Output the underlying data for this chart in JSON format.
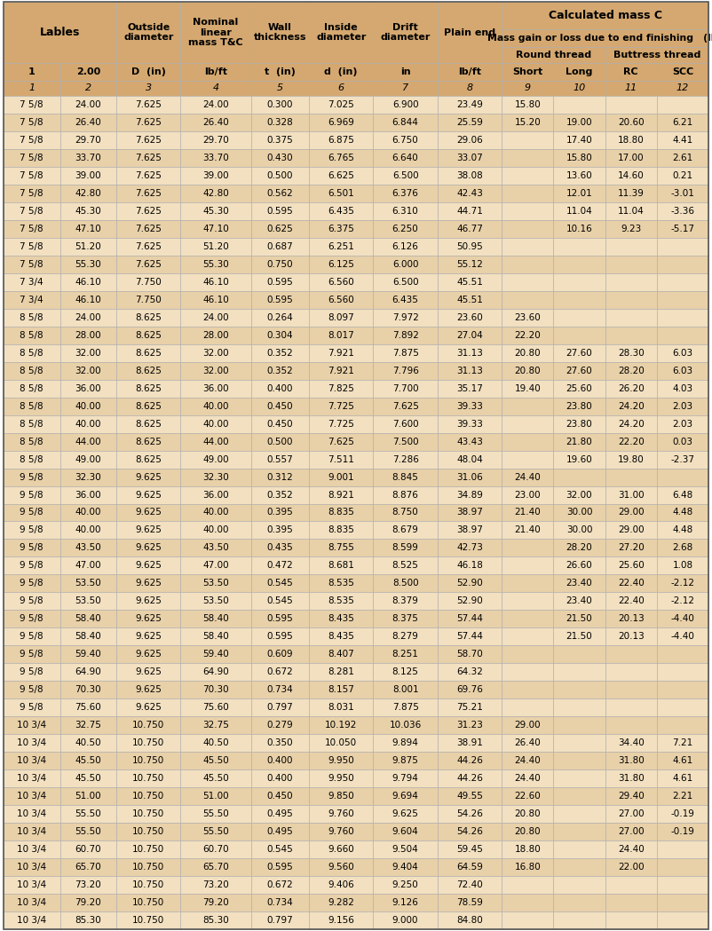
{
  "header_bg": "#d4a870",
  "row_bg_odd": "#f2e0c0",
  "row_bg_even": "#e8d0a8",
  "border_color": "#aaaaaa",
  "row4_texts": [
    "1",
    "2.00",
    "D  (in)",
    "lb/ft",
    "t  (in)",
    "d  (in)",
    "in",
    "lb/ft",
    "Short",
    "Long",
    "RC",
    "SCC"
  ],
  "row5_texts": [
    "1",
    "2",
    "3",
    "4",
    "5",
    "6",
    "7",
    "8",
    "9",
    "10",
    "11",
    "12"
  ],
  "rows": [
    [
      "7 5/8",
      "24.00",
      "7.625",
      "24.00",
      "0.300",
      "7.025",
      "6.900",
      "23.49",
      "15.80",
      "",
      "",
      ""
    ],
    [
      "7 5/8",
      "26.40",
      "7.625",
      "26.40",
      "0.328",
      "6.969",
      "6.844",
      "25.59",
      "15.20",
      "19.00",
      "20.60",
      "6.21"
    ],
    [
      "7 5/8",
      "29.70",
      "7.625",
      "29.70",
      "0.375",
      "6.875",
      "6.750",
      "29.06",
      "",
      "17.40",
      "18.80",
      "4.41"
    ],
    [
      "7 5/8",
      "33.70",
      "7.625",
      "33.70",
      "0.430",
      "6.765",
      "6.640",
      "33.07",
      "",
      "15.80",
      "17.00",
      "2.61"
    ],
    [
      "7 5/8",
      "39.00",
      "7.625",
      "39.00",
      "0.500",
      "6.625",
      "6.500",
      "38.08",
      "",
      "13.60",
      "14.60",
      "0.21"
    ],
    [
      "7 5/8",
      "42.80",
      "7.625",
      "42.80",
      "0.562",
      "6.501",
      "6.376",
      "42.43",
      "",
      "12.01",
      "11.39",
      "-3.01"
    ],
    [
      "7 5/8",
      "45.30",
      "7.625",
      "45.30",
      "0.595",
      "6.435",
      "6.310",
      "44.71",
      "",
      "11.04",
      "11.04",
      "-3.36"
    ],
    [
      "7 5/8",
      "47.10",
      "7.625",
      "47.10",
      "0.625",
      "6.375",
      "6.250",
      "46.77",
      "",
      "10.16",
      "9.23",
      "-5.17"
    ],
    [
      "7 5/8",
      "51.20",
      "7.625",
      "51.20",
      "0.687",
      "6.251",
      "6.126",
      "50.95",
      "",
      "",
      "",
      ""
    ],
    [
      "7 5/8",
      "55.30",
      "7.625",
      "55.30",
      "0.750",
      "6.125",
      "6.000",
      "55.12",
      "",
      "",
      "",
      ""
    ],
    [
      "7 3/4",
      "46.10",
      "7.750",
      "46.10",
      "0.595",
      "6.560",
      "6.500",
      "45.51",
      "",
      "",
      "",
      ""
    ],
    [
      "7 3/4",
      "46.10",
      "7.750",
      "46.10",
      "0.595",
      "6.560",
      "6.435",
      "45.51",
      "",
      "",
      "",
      ""
    ],
    [
      "8 5/8",
      "24.00",
      "8.625",
      "24.00",
      "0.264",
      "8.097",
      "7.972",
      "23.60",
      "23.60",
      "",
      "",
      ""
    ],
    [
      "8 5/8",
      "28.00",
      "8.625",
      "28.00",
      "0.304",
      "8.017",
      "7.892",
      "27.04",
      "22.20",
      "",
      "",
      ""
    ],
    [
      "8 5/8",
      "32.00",
      "8.625",
      "32.00",
      "0.352",
      "7.921",
      "7.875",
      "31.13",
      "20.80",
      "27.60",
      "28.30",
      "6.03"
    ],
    [
      "8 5/8",
      "32.00",
      "8.625",
      "32.00",
      "0.352",
      "7.921",
      "7.796",
      "31.13",
      "20.80",
      "27.60",
      "28.20",
      "6.03"
    ],
    [
      "8 5/8",
      "36.00",
      "8.625",
      "36.00",
      "0.400",
      "7.825",
      "7.700",
      "35.17",
      "19.40",
      "25.60",
      "26.20",
      "4.03"
    ],
    [
      "8 5/8",
      "40.00",
      "8.625",
      "40.00",
      "0.450",
      "7.725",
      "7.625",
      "39.33",
      "",
      "23.80",
      "24.20",
      "2.03"
    ],
    [
      "8 5/8",
      "40.00",
      "8.625",
      "40.00",
      "0.450",
      "7.725",
      "7.600",
      "39.33",
      "",
      "23.80",
      "24.20",
      "2.03"
    ],
    [
      "8 5/8",
      "44.00",
      "8.625",
      "44.00",
      "0.500",
      "7.625",
      "7.500",
      "43.43",
      "",
      "21.80",
      "22.20",
      "0.03"
    ],
    [
      "8 5/8",
      "49.00",
      "8.625",
      "49.00",
      "0.557",
      "7.511",
      "7.286",
      "48.04",
      "",
      "19.60",
      "19.80",
      "-2.37"
    ],
    [
      "9 5/8",
      "32.30",
      "9.625",
      "32.30",
      "0.312",
      "9.001",
      "8.845",
      "31.06",
      "24.40",
      "",
      "",
      ""
    ],
    [
      "9 5/8",
      "36.00",
      "9.625",
      "36.00",
      "0.352",
      "8.921",
      "8.876",
      "34.89",
      "23.00",
      "32.00",
      "31.00",
      "6.48"
    ],
    [
      "9 5/8",
      "40.00",
      "9.625",
      "40.00",
      "0.395",
      "8.835",
      "8.750",
      "38.97",
      "21.40",
      "30.00",
      "29.00",
      "4.48"
    ],
    [
      "9 5/8",
      "40.00",
      "9.625",
      "40.00",
      "0.395",
      "8.835",
      "8.679",
      "38.97",
      "21.40",
      "30.00",
      "29.00",
      "4.48"
    ],
    [
      "9 5/8",
      "43.50",
      "9.625",
      "43.50",
      "0.435",
      "8.755",
      "8.599",
      "42.73",
      "",
      "28.20",
      "27.20",
      "2.68"
    ],
    [
      "9 5/8",
      "47.00",
      "9.625",
      "47.00",
      "0.472",
      "8.681",
      "8.525",
      "46.18",
      "",
      "26.60",
      "25.60",
      "1.08"
    ],
    [
      "9 5/8",
      "53.50",
      "9.625",
      "53.50",
      "0.545",
      "8.535",
      "8.500",
      "52.90",
      "",
      "23.40",
      "22.40",
      "-2.12"
    ],
    [
      "9 5/8",
      "53.50",
      "9.625",
      "53.50",
      "0.545",
      "8.535",
      "8.379",
      "52.90",
      "",
      "23.40",
      "22.40",
      "-2.12"
    ],
    [
      "9 5/8",
      "58.40",
      "9.625",
      "58.40",
      "0.595",
      "8.435",
      "8.375",
      "57.44",
      "",
      "21.50",
      "20.13",
      "-4.40"
    ],
    [
      "9 5/8",
      "58.40",
      "9.625",
      "58.40",
      "0.595",
      "8.435",
      "8.279",
      "57.44",
      "",
      "21.50",
      "20.13",
      "-4.40"
    ],
    [
      "9 5/8",
      "59.40",
      "9.625",
      "59.40",
      "0.609",
      "8.407",
      "8.251",
      "58.70",
      "",
      "",
      "",
      ""
    ],
    [
      "9 5/8",
      "64.90",
      "9.625",
      "64.90",
      "0.672",
      "8.281",
      "8.125",
      "64.32",
      "",
      "",
      "",
      ""
    ],
    [
      "9 5/8",
      "70.30",
      "9.625",
      "70.30",
      "0.734",
      "8.157",
      "8.001",
      "69.76",
      "",
      "",
      "",
      ""
    ],
    [
      "9 5/8",
      "75.60",
      "9.625",
      "75.60",
      "0.797",
      "8.031",
      "7.875",
      "75.21",
      "",
      "",
      "",
      ""
    ],
    [
      "10 3/4",
      "32.75",
      "10.750",
      "32.75",
      "0.279",
      "10.192",
      "10.036",
      "31.23",
      "29.00",
      "",
      "",
      ""
    ],
    [
      "10 3/4",
      "40.50",
      "10.750",
      "40.50",
      "0.350",
      "10.050",
      "9.894",
      "38.91",
      "26.40",
      "",
      "34.40",
      "7.21"
    ],
    [
      "10 3/4",
      "45.50",
      "10.750",
      "45.50",
      "0.400",
      "9.950",
      "9.875",
      "44.26",
      "24.40",
      "",
      "31.80",
      "4.61"
    ],
    [
      "10 3/4",
      "45.50",
      "10.750",
      "45.50",
      "0.400",
      "9.950",
      "9.794",
      "44.26",
      "24.40",
      "",
      "31.80",
      "4.61"
    ],
    [
      "10 3/4",
      "51.00",
      "10.750",
      "51.00",
      "0.450",
      "9.850",
      "9.694",
      "49.55",
      "22.60",
      "",
      "29.40",
      "2.21"
    ],
    [
      "10 3/4",
      "55.50",
      "10.750",
      "55.50",
      "0.495",
      "9.760",
      "9.625",
      "54.26",
      "20.80",
      "",
      "27.00",
      "-0.19"
    ],
    [
      "10 3/4",
      "55.50",
      "10.750",
      "55.50",
      "0.495",
      "9.760",
      "9.604",
      "54.26",
      "20.80",
      "",
      "27.00",
      "-0.19"
    ],
    [
      "10 3/4",
      "60.70",
      "10.750",
      "60.70",
      "0.545",
      "9.660",
      "9.504",
      "59.45",
      "18.80",
      "",
      "24.40",
      ""
    ],
    [
      "10 3/4",
      "65.70",
      "10.750",
      "65.70",
      "0.595",
      "9.560",
      "9.404",
      "64.59",
      "16.80",
      "",
      "22.00",
      ""
    ],
    [
      "10 3/4",
      "73.20",
      "10.750",
      "73.20",
      "0.672",
      "9.406",
      "9.250",
      "72.40",
      "",
      "",
      "",
      ""
    ],
    [
      "10 3/4",
      "79.20",
      "10.750",
      "79.20",
      "0.734",
      "9.282",
      "9.126",
      "78.59",
      "",
      "",
      "",
      ""
    ],
    [
      "10 3/4",
      "85.30",
      "10.750",
      "85.30",
      "0.797",
      "9.156",
      "9.000",
      "84.80",
      "",
      "",
      "",
      ""
    ]
  ]
}
